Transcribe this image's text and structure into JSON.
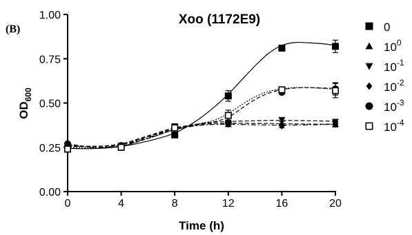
{
  "panel_label": "(B)",
  "chart_data": {
    "type": "line",
    "title": "Xoo (1172E9)",
    "xlabel": "Time (h)",
    "ylabel": {
      "base": "OD",
      "sub": "600"
    },
    "xlim": [
      0,
      20
    ],
    "ylim": [
      0,
      1
    ],
    "x_ticks": [
      0,
      4,
      8,
      12,
      16,
      20
    ],
    "y_ticks": [
      0,
      0.25,
      0.5,
      0.75,
      1
    ],
    "y_tick_labels": [
      "0.00",
      "0.25",
      "0.50",
      "0.75",
      "1.00"
    ],
    "grid": false,
    "legend_position": "right",
    "x": [
      0,
      4,
      8,
      12,
      16,
      20
    ],
    "series": [
      {
        "legend_base": "0",
        "legend_sup": "",
        "marker": "square-filled",
        "values": [
          0.24,
          0.25,
          0.32,
          0.54,
          0.81,
          0.82
        ],
        "errors": [
          0.015,
          0.015,
          0.015,
          0.03,
          0.015,
          0.035
        ],
        "line": "solid",
        "curve": [
          [
            0,
            0.245
          ],
          [
            1,
            0.242
          ],
          [
            2,
            0.243
          ],
          [
            3,
            0.247
          ],
          [
            4,
            0.255
          ],
          [
            5,
            0.268
          ],
          [
            6,
            0.285
          ],
          [
            7,
            0.305
          ],
          [
            8,
            0.33
          ],
          [
            9,
            0.37
          ],
          [
            10,
            0.42
          ],
          [
            11,
            0.48
          ],
          [
            12,
            0.55
          ],
          [
            13,
            0.63
          ],
          [
            14,
            0.71
          ],
          [
            15,
            0.78
          ],
          [
            16,
            0.825
          ],
          [
            17,
            0.842
          ],
          [
            18,
            0.84
          ],
          [
            19,
            0.835
          ],
          [
            20,
            0.825
          ]
        ]
      },
      {
        "legend_base": "10",
        "legend_sup": "0",
        "marker": "triangle-up",
        "values": [
          0.25,
          0.26,
          0.36,
          0.38,
          0.385,
          0.38
        ],
        "errors": [
          0.01,
          0.01,
          0.01,
          0.01,
          0.01,
          0.015
        ],
        "line": "dashed",
        "curve": [
          [
            0,
            0.255
          ],
          [
            2,
            0.255
          ],
          [
            4,
            0.27
          ],
          [
            6,
            0.315
          ],
          [
            8,
            0.36
          ],
          [
            10,
            0.38
          ],
          [
            12,
            0.385
          ],
          [
            14,
            0.385
          ],
          [
            16,
            0.383
          ],
          [
            18,
            0.381
          ],
          [
            20,
            0.38
          ]
        ]
      },
      {
        "legend_base": "10",
        "legend_sup": "-1",
        "marker": "triangle-down",
        "values": [
          0.26,
          0.26,
          0.37,
          0.39,
          0.405,
          0.395
        ],
        "errors": [
          0.01,
          0.01,
          0.01,
          0.01,
          0.01,
          0.01
        ],
        "line": "dashed",
        "curve": [
          [
            0,
            0.26
          ],
          [
            2,
            0.256
          ],
          [
            4,
            0.265
          ],
          [
            6,
            0.31
          ],
          [
            8,
            0.355
          ],
          [
            10,
            0.385
          ],
          [
            12,
            0.395
          ],
          [
            14,
            0.4
          ],
          [
            16,
            0.402
          ],
          [
            18,
            0.4
          ],
          [
            20,
            0.397
          ]
        ]
      },
      {
        "legend_base": "10",
        "legend_sup": "-2",
        "marker": "diamond-filled",
        "values": [
          0.26,
          0.25,
          0.36,
          0.38,
          0.37,
          0.38
        ],
        "errors": [
          0.01,
          0.01,
          0.01,
          0.01,
          0.01,
          0.01
        ],
        "line": "dash-dot",
        "curve": [
          [
            0,
            0.262
          ],
          [
            2,
            0.25
          ],
          [
            4,
            0.262
          ],
          [
            6,
            0.305
          ],
          [
            8,
            0.35
          ],
          [
            10,
            0.375
          ],
          [
            12,
            0.38
          ],
          [
            14,
            0.377
          ],
          [
            16,
            0.375
          ],
          [
            18,
            0.377
          ],
          [
            20,
            0.38
          ]
        ]
      },
      {
        "legend_base": "10",
        "legend_sup": "-3",
        "marker": "circle-filled",
        "values": [
          0.27,
          0.26,
          0.36,
          0.39,
          0.56,
          0.58
        ],
        "errors": [
          0.01,
          0.01,
          0.01,
          0.01,
          0.01,
          0.035
        ],
        "line": "dashed",
        "curve": [
          [
            0,
            0.27
          ],
          [
            2,
            0.25
          ],
          [
            4,
            0.258
          ],
          [
            6,
            0.3
          ],
          [
            8,
            0.35
          ],
          [
            10,
            0.38
          ],
          [
            11,
            0.395
          ],
          [
            12,
            0.42
          ],
          [
            13,
            0.47
          ],
          [
            14,
            0.52
          ],
          [
            15,
            0.555
          ],
          [
            16,
            0.575
          ],
          [
            17,
            0.585
          ],
          [
            18,
            0.587
          ],
          [
            19,
            0.585
          ],
          [
            20,
            0.583
          ]
        ]
      },
      {
        "legend_base": "10",
        "legend_sup": "-4",
        "marker": "square-open",
        "values": [
          0.24,
          0.25,
          0.36,
          0.43,
          0.575,
          0.57
        ],
        "errors": [
          0.01,
          0.01,
          0.015,
          0.03,
          0.015,
          0.04
        ],
        "line": "dotted",
        "curve": [
          [
            0,
            0.25
          ],
          [
            2,
            0.245
          ],
          [
            4,
            0.256
          ],
          [
            6,
            0.3
          ],
          [
            8,
            0.35
          ],
          [
            10,
            0.385
          ],
          [
            11,
            0.405
          ],
          [
            12,
            0.44
          ],
          [
            13,
            0.49
          ],
          [
            14,
            0.535
          ],
          [
            15,
            0.565
          ],
          [
            16,
            0.58
          ],
          [
            17,
            0.587
          ],
          [
            18,
            0.587
          ],
          [
            19,
            0.583
          ],
          [
            20,
            0.578
          ]
        ]
      }
    ]
  }
}
